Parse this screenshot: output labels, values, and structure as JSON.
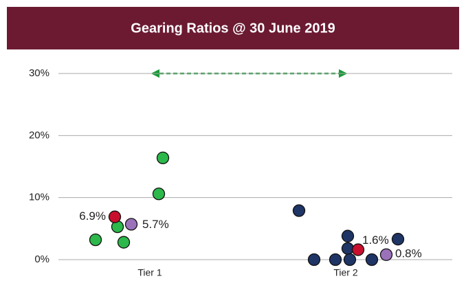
{
  "chart_data": {
    "type": "strip",
    "title": "Gearing Ratios @ 30 June 2019",
    "categories": [
      "Tier 1",
      "Tier 2"
    ],
    "ylim": [
      0,
      30
    ],
    "yticks": [
      {
        "value": 0,
        "label": "0%"
      },
      {
        "value": 10,
        "label": "10%"
      },
      {
        "value": 20,
        "label": "20%"
      },
      {
        "value": 30,
        "label": "30%"
      }
    ],
    "grid": true,
    "series": [
      {
        "category": 0,
        "color": "#2db84b",
        "values": [
          16.4,
          10.6,
          5.3,
          3.2,
          2.8
        ]
      },
      {
        "category": 0,
        "color": "#c8102e",
        "values": [
          6.9
        ],
        "value_labels": [
          "6.9%"
        ]
      },
      {
        "category": 0,
        "color": "#9b72b9",
        "values": [
          5.7
        ],
        "value_labels": [
          "5.7%"
        ]
      },
      {
        "category": 1,
        "color": "#1f3566",
        "values": [
          7.9,
          3.8,
          3.3,
          1.8,
          0,
          0,
          0,
          0
        ]
      },
      {
        "category": 1,
        "color": "#c8102e",
        "values": [
          1.6
        ],
        "value_labels": [
          "1.6%"
        ]
      },
      {
        "category": 1,
        "color": "#9b72b9",
        "values": [
          0.8
        ],
        "value_labels": [
          "0.8%"
        ]
      }
    ]
  }
}
